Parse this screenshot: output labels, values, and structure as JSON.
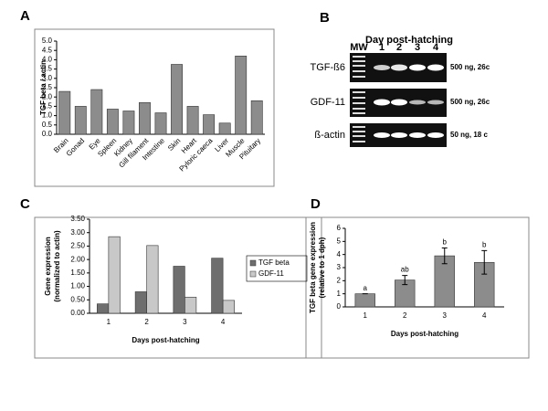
{
  "chart_data": [
    {
      "type": "bar",
      "panel": "A",
      "y_label": [
        "TGF beta / actin"
      ],
      "categories": [
        "Brain",
        "Gonad",
        "Eye",
        "Spleen",
        "Kidney",
        "Gill filament",
        "Intestine",
        "Skin",
        "Heart",
        "Pyloric caeca",
        "Liver",
        "Muscle",
        "Pituitary"
      ],
      "values": [
        2.3,
        1.5,
        2.4,
        1.35,
        1.25,
        1.7,
        1.15,
        3.75,
        1.5,
        1.05,
        0.6,
        4.2,
        1.8
      ],
      "color": "#8c8c8c",
      "ylim": [
        0,
        5
      ],
      "yticks": [
        {
          "value": 0,
          "label": "0.0"
        },
        {
          "value": 0.5,
          "label": "0.5"
        },
        {
          "value": 1,
          "label": "1.0"
        },
        {
          "value": 1.5,
          "label": "1.5"
        },
        {
          "value": 2,
          "label": "2.0"
        },
        {
          "value": 2.5,
          "label": "2.5"
        },
        {
          "value": 3,
          "label": "3.0"
        },
        {
          "value": 3.5,
          "label": "3.5"
        },
        {
          "value": 4,
          "label": "4.0"
        },
        {
          "value": 4.5,
          "label": "4.5"
        },
        {
          "value": 5,
          "label": "5.0"
        }
      ]
    },
    {
      "type": "grouped-bar",
      "panel": "C",
      "y_label": [
        "Gene expression",
        "(normalized to actin)"
      ],
      "x_label": "Days post-hatching",
      "categories": [
        "1",
        "2",
        "3",
        "4"
      ],
      "series": [
        {
          "name": "TGF beta",
          "color": "#6e6e6e",
          "values": [
            0.35,
            0.8,
            1.75,
            2.05
          ]
        },
        {
          "name": "GDF-11",
          "color": "#c8c8c8",
          "values": [
            2.85,
            2.52,
            0.6,
            0.48
          ]
        }
      ],
      "ylim": [
        0,
        3.5
      ],
      "yticks": [
        {
          "value": 0,
          "label": "0.00"
        },
        {
          "value": 0.5,
          "label": "0.50"
        },
        {
          "value": 1,
          "label": "1.00"
        },
        {
          "value": 1.5,
          "label": "1.50"
        },
        {
          "value": 2,
          "label": "2.00"
        },
        {
          "value": 2.5,
          "label": "2.50"
        },
        {
          "value": 3,
          "label": "3.00"
        },
        {
          "value": 3.5,
          "label": "3.50"
        }
      ],
      "legend": "right"
    },
    {
      "type": "error-bar",
      "panel": "D",
      "y_label": [
        "TGF beta gene expression",
        "(relative to 1 dph)"
      ],
      "x_label": "Days post-hatching",
      "categories": [
        "1",
        "2",
        "3",
        "4"
      ],
      "values": [
        1,
        2.05,
        3.9,
        3.4
      ],
      "errors": [
        0,
        0.35,
        0.6,
        0.9
      ],
      "annotations": [
        "a",
        "ab",
        "b",
        "b"
      ],
      "color": "#8c8c8c",
      "ylim": [
        0,
        6
      ],
      "yticks": [
        0,
        1,
        2,
        3,
        4,
        5,
        6
      ]
    }
  ],
  "gel": {
    "panel": "B",
    "title": "Day post-hatching",
    "lanes": [
      "MW",
      "1",
      "2",
      "3",
      "4"
    ],
    "rows": [
      {
        "gene": "TGF-ß6",
        "condition": "500 ng, 26c"
      },
      {
        "gene": "GDF-11",
        "condition": "500 ng, 26c"
      },
      {
        "gene": "ß-actin",
        "condition": "50 ng, 18 c"
      }
    ]
  }
}
